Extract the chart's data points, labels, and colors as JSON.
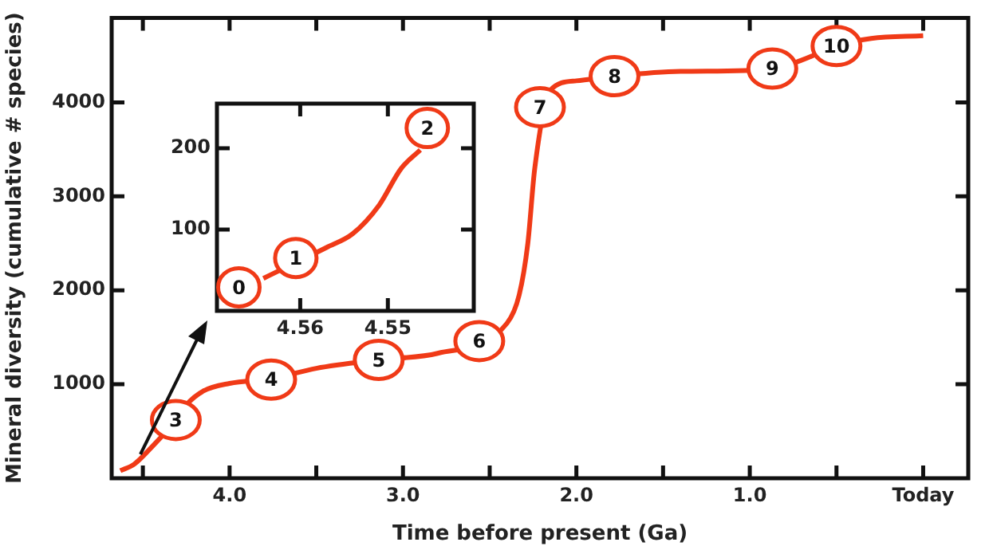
{
  "chart_data": [
    {
      "type": "line",
      "xlabel": "Time before present (Ga)",
      "ylabel": "Mineral diversity (cumulative # species)",
      "color": "#f03a17",
      "marker": "none",
      "grid": false,
      "x": [
        4.63,
        4.55,
        4.45,
        4.35,
        4.31,
        4.25,
        4.15,
        4.0,
        3.76,
        3.5,
        3.14,
        2.8,
        2.4,
        2.33,
        2.28,
        2.24,
        2.15,
        2.0,
        1.78,
        1.4,
        0.87,
        0.7,
        0.5,
        0.3,
        0
      ],
      "values": [
        80,
        150,
        330,
        530,
        620,
        780,
        930,
        1010,
        1060,
        1170,
        1260,
        1330,
        1650,
        1950,
        2500,
        3300,
        4130,
        4230,
        4280,
        4330,
        4350,
        4450,
        4600,
        4680,
        4710
      ],
      "xlim": [
        4.68,
        -0.26
      ],
      "ylim": [
        0,
        4900
      ],
      "xticks": [
        {
          "value": 4.5,
          "label": null
        },
        {
          "value": 4,
          "label": "4.0"
        },
        {
          "value": 3.5,
          "label": null
        },
        {
          "value": 3,
          "label": "3.0"
        },
        {
          "value": 2.5,
          "label": null
        },
        {
          "value": 2,
          "label": "2.0"
        },
        {
          "value": 1.5,
          "label": null
        },
        {
          "value": 1,
          "label": "1.0"
        },
        {
          "value": 0.5,
          "label": null
        },
        {
          "value": 0,
          "label": "Today"
        }
      ],
      "yticks": [
        1000,
        2000,
        3000,
        4000
      ],
      "annotations": [
        {
          "text": "3",
          "x": 4.31,
          "y": 620
        },
        {
          "text": "4",
          "x": 3.76,
          "y": 1050
        },
        {
          "text": "5",
          "x": 3.14,
          "y": 1260
        },
        {
          "text": "6",
          "x": 2.56,
          "y": 1460
        },
        {
          "text": "7",
          "x": 2.21,
          "y": 3950
        },
        {
          "text": "8",
          "x": 1.78,
          "y": 4280
        },
        {
          "text": "9",
          "x": 0.87,
          "y": 4360
        },
        {
          "text": "10",
          "x": 0.5,
          "y": 4600
        }
      ]
    },
    {
      "type": "line",
      "color": "#f03a17",
      "marker": "none",
      "grid": false,
      "x": [
        4.5642,
        4.557,
        4.554,
        4.551,
        4.5485,
        4.5463
      ],
      "values": [
        40,
        78,
        95,
        130,
        175,
        198
      ],
      "xlim": [
        4.5695,
        4.5402
      ],
      "ylim": [
        0,
        255
      ],
      "xticks": [
        4.56,
        4.55
      ],
      "yticks": [
        100,
        200
      ],
      "annotations": [
        {
          "text": "0",
          "x": 4.567,
          "y": 29
        },
        {
          "text": "1",
          "x": 4.5605,
          "y": 65
        },
        {
          "text": "2",
          "x": 4.5455,
          "y": 225
        }
      ]
    }
  ]
}
